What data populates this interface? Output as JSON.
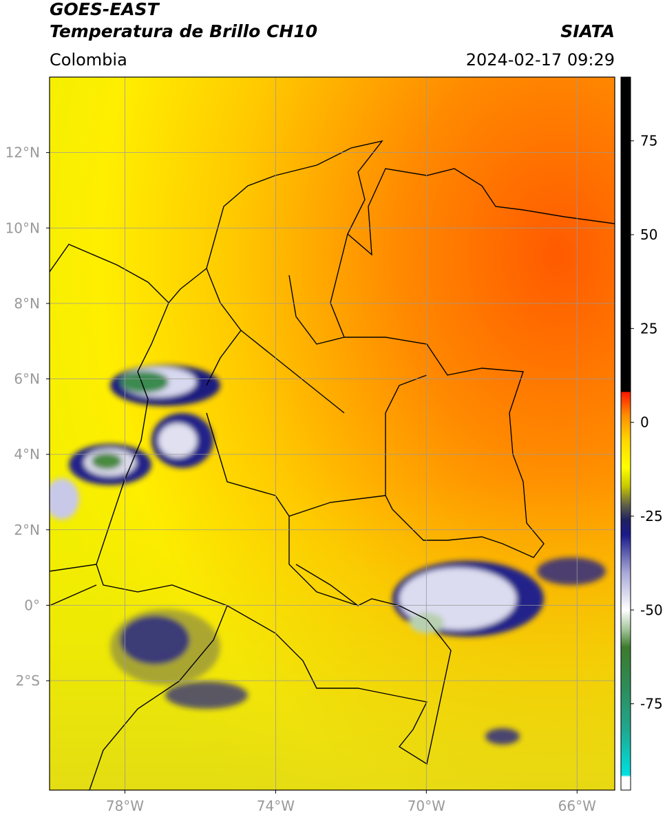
{
  "header": {
    "title": "GOES-EAST",
    "subtitle": "Temperatura de Brillo CH10",
    "source": "SIATA",
    "region": "Colombia",
    "timestamp": "2024-02-17 09:29"
  },
  "map": {
    "xlim": [
      -80,
      -65
    ],
    "ylim": [
      -4.9,
      14
    ],
    "xticks": [
      {
        "value": -78,
        "label": "78°W"
      },
      {
        "value": -74,
        "label": "74°W"
      },
      {
        "value": -70,
        "label": "70°W"
      },
      {
        "value": -66,
        "label": "66°W"
      }
    ],
    "yticks": [
      {
        "value": 12,
        "label": "12°N"
      },
      {
        "value": 10,
        "label": "10°N"
      },
      {
        "value": 8,
        "label": "8°N"
      },
      {
        "value": 6,
        "label": "6°N"
      },
      {
        "value": 4,
        "label": "4°N"
      },
      {
        "value": 2,
        "label": "2°N"
      },
      {
        "value": 0,
        "label": "0°"
      },
      {
        "value": -2,
        "label": "2°S"
      }
    ],
    "grid": true,
    "grid_color": "#999999"
  },
  "colorbar": {
    "clim": [
      -98,
      92
    ],
    "ticks": [
      75,
      50,
      25,
      0,
      -25,
      -50,
      -75
    ],
    "stops": [
      [
        -98,
        "#ffffff"
      ],
      [
        -94.5,
        "#ffffff"
      ],
      [
        -94,
        "#00e0e0"
      ],
      [
        -82,
        "#20a890"
      ],
      [
        -70,
        "#2e8b57"
      ],
      [
        -60,
        "#3c7a2c"
      ],
      [
        -55,
        "#a8c8a0"
      ],
      [
        -50,
        "#ffffff"
      ],
      [
        -40,
        "#a8a8d8"
      ],
      [
        -30,
        "#1a1a8a"
      ],
      [
        -26,
        "#202060"
      ],
      [
        -22,
        "#606048"
      ],
      [
        -17,
        "#c8c800"
      ],
      [
        -12,
        "#ffff00"
      ],
      [
        -5,
        "#ffd800"
      ],
      [
        2,
        "#ff8c00"
      ],
      [
        8,
        "#ff1800"
      ],
      [
        8.2,
        "#000000"
      ],
      [
        92,
        "#000000"
      ]
    ]
  }
}
